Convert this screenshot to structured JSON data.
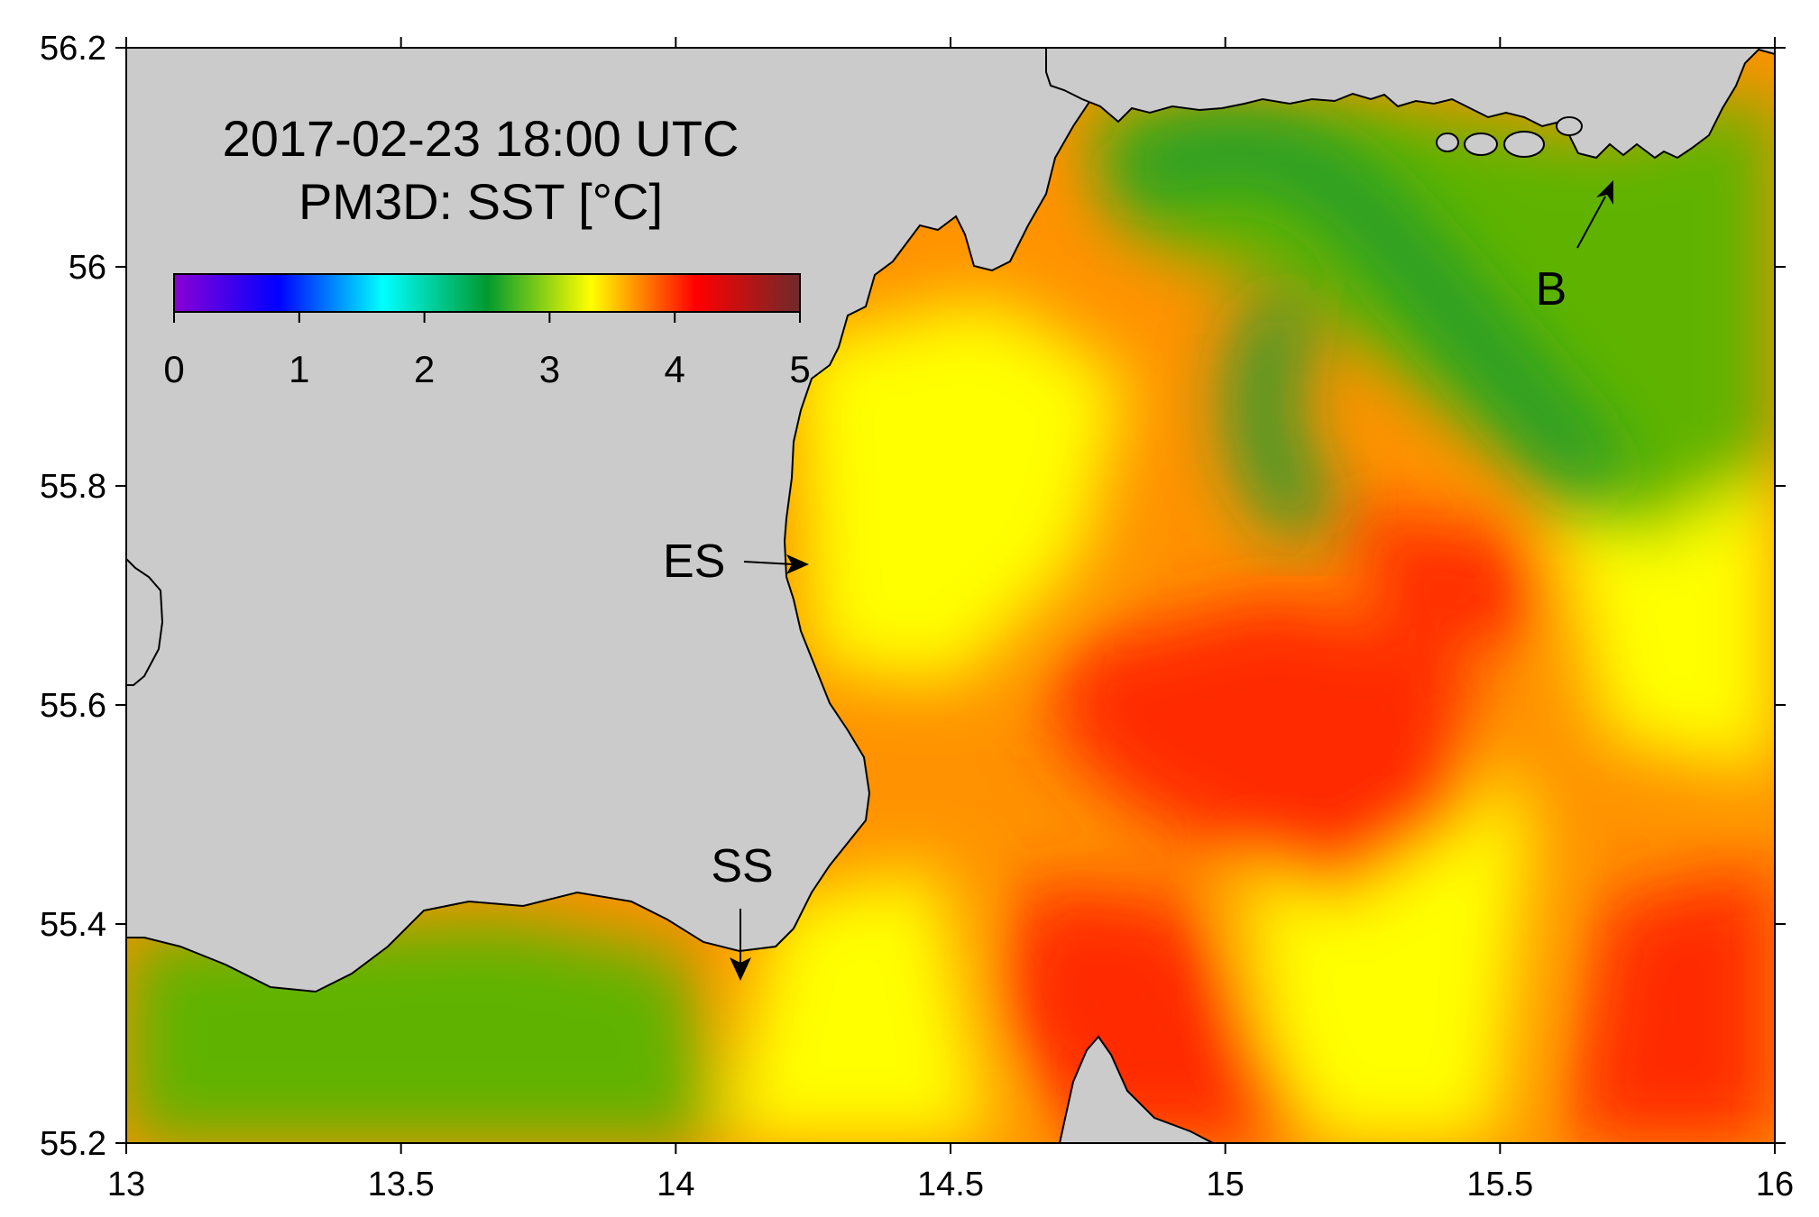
{
  "map": {
    "title_lines": [
      "2017-02-23 18:00 UTC",
      "PM3D: SST [°C]"
    ],
    "x_axis": {
      "min": 13,
      "max": 16,
      "ticks": [
        "13",
        "13.5",
        "14",
        "14.5",
        "15",
        "15.5",
        "16"
      ]
    },
    "y_axis": {
      "min": 55.2,
      "max": 56.2,
      "ticks": [
        "56.2",
        "56",
        "55.8",
        "55.6",
        "55.4",
        "55.2"
      ]
    },
    "colorbar": {
      "min": 0,
      "max": 5,
      "ticks": [
        "0",
        "1",
        "2",
        "3",
        "4",
        "5"
      ],
      "colors": [
        "#8a00d4",
        "#0000ff",
        "#00ffff",
        "#009a2e",
        "#ffff00",
        "#ff0000",
        "#6e2a2a"
      ]
    },
    "annotations": [
      {
        "label": "ES"
      },
      {
        "label": "SS"
      },
      {
        "label": "B"
      }
    ],
    "colors": {
      "land": "#cbcbcb",
      "sea_cool": "#5fb300",
      "sea_mid": "#ffff00",
      "sea_warm": "#ff9200",
      "sea_hot": "#ff2a00",
      "plume": "#1a9a30"
    }
  }
}
